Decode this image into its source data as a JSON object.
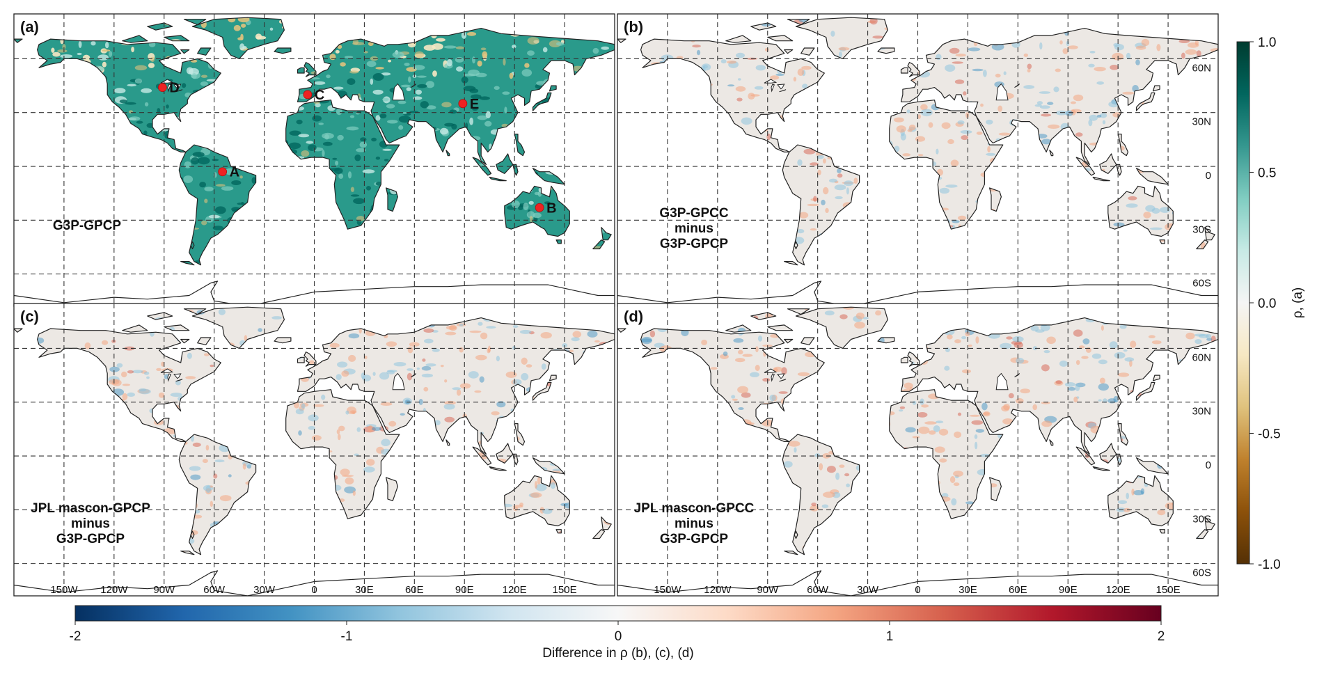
{
  "figure": {
    "panels": [
      {
        "id": "a",
        "label": "(a)",
        "title_lines": [
          "G3P-GPCP"
        ],
        "kind": "rho",
        "points": [
          {
            "name": "A",
            "lon": -55,
            "lat": -3
          },
          {
            "name": "B",
            "lon": 135,
            "lat": -23
          },
          {
            "name": "C",
            "lon": -4,
            "lat": 40
          },
          {
            "name": "D",
            "lon": -91,
            "lat": 44
          },
          {
            "name": "E",
            "lon": 89,
            "lat": 35
          }
        ]
      },
      {
        "id": "b",
        "label": "(b)",
        "title_lines": [
          "G3P-GPCC",
          "minus",
          "G3P-GPCP"
        ],
        "kind": "diff"
      },
      {
        "id": "c",
        "label": "(c)",
        "title_lines": [
          "JPL mascon-GPCP",
          "minus",
          "G3P-GPCP"
        ],
        "kind": "diff"
      },
      {
        "id": "d",
        "label": "(d)",
        "title_lines": [
          "JPL mascon-GPCC",
          "minus",
          "G3P-GPCP"
        ],
        "kind": "diff"
      }
    ],
    "lat_ticks": [
      {
        "lat": 60,
        "label": "60N"
      },
      {
        "lat": 30,
        "label": "30N"
      },
      {
        "lat": 0,
        "label": "0"
      },
      {
        "lat": -30,
        "label": "30S"
      },
      {
        "lat": -60,
        "label": "60S"
      }
    ],
    "lon_ticks": [
      {
        "lon": -150,
        "label": "150W"
      },
      {
        "lon": -120,
        "label": "120W"
      },
      {
        "lon": -90,
        "label": "90W"
      },
      {
        "lon": -60,
        "label": "60W"
      },
      {
        "lon": -30,
        "label": "30W"
      },
      {
        "lon": 0,
        "label": "0"
      },
      {
        "lon": 30,
        "label": "30E"
      },
      {
        "lon": 60,
        "label": "60E"
      },
      {
        "lon": 90,
        "label": "90E"
      },
      {
        "lon": 120,
        "label": "120E"
      },
      {
        "lon": 150,
        "label": "150E"
      }
    ],
    "colorbar_rho": {
      "label": "ρ, (a)",
      "range": [
        -1.0,
        1.0
      ],
      "ticks": [
        {
          "value": 1.0,
          "label": "1.0"
        },
        {
          "value": 0.5,
          "label": "0.5"
        },
        {
          "value": 0.0,
          "label": "0.0"
        },
        {
          "value": -0.5,
          "label": "-0.5"
        },
        {
          "value": -1.0,
          "label": "-1.0"
        }
      ],
      "colors": [
        "#543005",
        "#8c510a",
        "#bf812d",
        "#dfc27d",
        "#f6e8c3",
        "#f5f5f5",
        "#c7eae5",
        "#80cdc1",
        "#35978f",
        "#01665e",
        "#003c30"
      ]
    },
    "colorbar_diff": {
      "label": "Difference in ρ (b), (c), (d)",
      "range": [
        -2,
        2
      ],
      "ticks": [
        {
          "value": -2,
          "label": "-2"
        },
        {
          "value": -1,
          "label": "-1"
        },
        {
          "value": 0,
          "label": "0"
        },
        {
          "value": 1,
          "label": "1"
        },
        {
          "value": 2,
          "label": "2"
        }
      ],
      "colors": [
        "#053061",
        "#2166ac",
        "#4393c3",
        "#92c5de",
        "#d1e5f0",
        "#f7f7f7",
        "#fddbc7",
        "#f4a582",
        "#d6604d",
        "#b2182b",
        "#67001f"
      ]
    },
    "colors": {
      "point": "#ee2222",
      "coast": "#222222",
      "grid": "#333333",
      "land_rho": "#2a9a8b",
      "land_diff": "#ece8e4"
    }
  }
}
